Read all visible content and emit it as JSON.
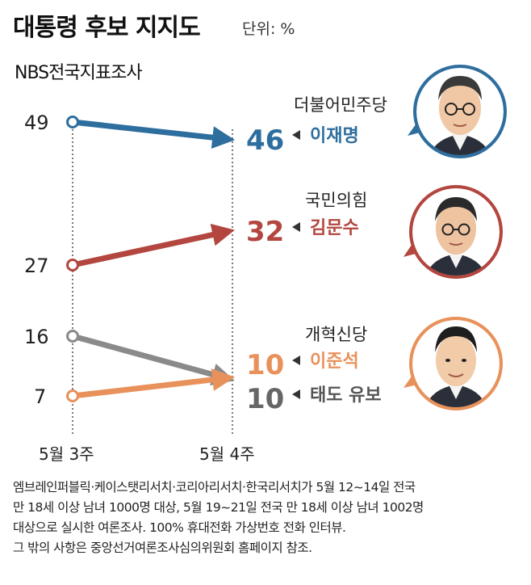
{
  "header": {
    "title": "대통령 후보 지지도",
    "unit": "단위: %",
    "source": "NBS전국지표조사"
  },
  "chart_data": {
    "type": "line",
    "title": "대통령 후보 지지도",
    "x": [
      "5월 3주",
      "5월 4주"
    ],
    "ylabel": "",
    "series": [
      {
        "name": "이재명",
        "party": "더불어민주당",
        "values": [
          49,
          46
        ],
        "color": "#2e6e9e"
      },
      {
        "name": "김문수",
        "party": "국민의힘",
        "values": [
          27,
          32
        ],
        "color": "#b3463f"
      },
      {
        "name": "이준석",
        "party": "개혁신당",
        "values": [
          7,
          10
        ],
        "color": "#e8915a"
      },
      {
        "name": "태도 유보",
        "party": "",
        "values": [
          16,
          10
        ],
        "color": "#8a8a8a"
      }
    ]
  },
  "footnote": {
    "lines": [
      "엠브레인퍼블릭·케이스탯리서치·코리아리서치·한국리서치가 5월 12~14일 전국",
      "만 18세 이상 남녀 1000명 대상, 5월 19~21일 전국 만 18세 이상 남녀 1002명",
      "대상으로 실시한 여론조사. 100% 휴대전화 가상번호 전화 인터뷰.",
      "그 밖의 사항은 중앙선거여론조사심의위원회 홈페이지 참조."
    ]
  }
}
